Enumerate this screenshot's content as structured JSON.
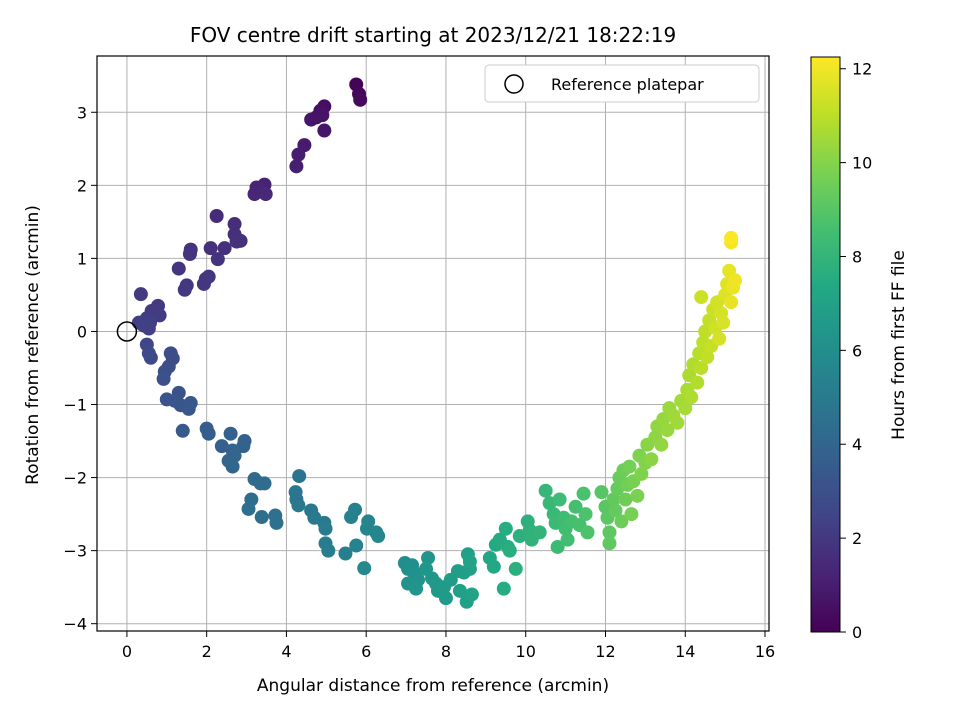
{
  "chart_data": {
    "type": "scatter",
    "title": "FOV centre drift starting at 2023/12/21 18:22:19",
    "xlabel": "Angular distance from reference (arcmin)",
    "ylabel": "Rotation from reference (arcmin)",
    "xlim": [
      -0.75,
      16.1
    ],
    "ylim": [
      -4.1,
      3.77
    ],
    "xticks": [
      0,
      2,
      4,
      6,
      8,
      10,
      12,
      14,
      16
    ],
    "yticks": [
      -4,
      -3,
      -2,
      -1,
      0,
      1,
      2,
      3
    ],
    "grid": true,
    "legend": {
      "placement": "top-right",
      "entries": [
        "Reference platepar"
      ]
    },
    "reference_point": {
      "x": 0,
      "y": 0,
      "label": "Reference platepar"
    },
    "colorbar": {
      "label": "Hours from first FF file",
      "range": [
        0,
        12.25
      ],
      "ticks": [
        0,
        2,
        4,
        6,
        8,
        10,
        12
      ],
      "colormap": "viridis"
    },
    "series": [
      {
        "color_by": "hours",
        "points": [
          [
            5.75,
            3.38,
            0.1
          ],
          [
            5.82,
            3.25,
            0.2
          ],
          [
            5.85,
            3.17,
            0.3
          ],
          [
            4.95,
            3.08,
            0.45
          ],
          [
            4.85,
            3.02,
            0.55
          ],
          [
            4.75,
            2.93,
            0.6
          ],
          [
            4.9,
            2.96,
            0.65
          ],
          [
            4.62,
            2.9,
            0.7
          ],
          [
            4.95,
            2.75,
            0.75
          ],
          [
            4.45,
            2.55,
            0.9
          ],
          [
            4.3,
            2.42,
            1.0
          ],
          [
            4.25,
            2.26,
            1.05
          ],
          [
            3.45,
            2.01,
            1.2
          ],
          [
            3.25,
            1.97,
            1.25
          ],
          [
            3.35,
            1.93,
            1.3
          ],
          [
            3.2,
            1.88,
            1.35
          ],
          [
            3.48,
            1.88,
            1.4
          ],
          [
            2.25,
            1.58,
            1.5
          ],
          [
            2.7,
            1.47,
            1.6
          ],
          [
            2.7,
            1.33,
            1.65
          ],
          [
            2.85,
            1.24,
            1.7
          ],
          [
            2.75,
            1.23,
            1.72
          ],
          [
            2.1,
            1.14,
            1.75
          ],
          [
            2.45,
            1.14,
            1.78
          ],
          [
            1.6,
            1.12,
            1.8
          ],
          [
            1.58,
            1.06,
            1.82
          ],
          [
            2.28,
            0.99,
            1.85
          ],
          [
            1.3,
            0.86,
            1.88
          ],
          [
            2.05,
            0.75,
            1.9
          ],
          [
            1.98,
            0.72,
            1.92
          ],
          [
            1.93,
            0.65,
            1.95
          ],
          [
            1.5,
            0.63,
            1.97
          ],
          [
            1.45,
            0.57,
            2.0
          ],
          [
            0.35,
            0.51,
            2.05
          ],
          [
            0.78,
            0.35,
            2.1
          ],
          [
            0.72,
            0.3,
            2.12
          ],
          [
            0.62,
            0.28,
            2.15
          ],
          [
            0.5,
            0.18,
            2.18
          ],
          [
            0.82,
            0.22,
            2.2
          ],
          [
            0.3,
            0.12,
            2.22
          ],
          [
            0.58,
            0.12,
            2.25
          ],
          [
            0.42,
            0.08,
            2.28
          ],
          [
            0.55,
            0.04,
            2.3
          ],
          [
            0.5,
            -0.18,
            2.6
          ],
          [
            0.55,
            -0.3,
            2.7
          ],
          [
            0.6,
            -0.36,
            2.75
          ],
          [
            1.1,
            -0.3,
            2.8
          ],
          [
            1.15,
            -0.37,
            2.85
          ],
          [
            1.05,
            -0.48,
            2.9
          ],
          [
            0.95,
            -0.55,
            2.95
          ],
          [
            0.92,
            -0.65,
            3.0
          ],
          [
            1.3,
            -0.84,
            3.1
          ],
          [
            1.0,
            -0.93,
            3.15
          ],
          [
            1.2,
            -0.95,
            3.2
          ],
          [
            1.35,
            -1.01,
            3.25
          ],
          [
            1.6,
            -0.98,
            3.3
          ],
          [
            1.55,
            -1.06,
            3.35
          ],
          [
            1.4,
            -1.36,
            3.4
          ],
          [
            2.0,
            -1.33,
            3.6
          ],
          [
            2.05,
            -1.4,
            3.65
          ],
          [
            2.38,
            -1.57,
            3.7
          ],
          [
            2.6,
            -1.4,
            3.75
          ],
          [
            2.95,
            -1.5,
            3.8
          ],
          [
            2.92,
            -1.57,
            3.85
          ],
          [
            2.65,
            -1.63,
            3.9
          ],
          [
            2.7,
            -1.7,
            3.95
          ],
          [
            2.55,
            -1.77,
            4.0
          ],
          [
            2.65,
            -1.85,
            4.05
          ],
          [
            3.2,
            -2.02,
            4.2
          ],
          [
            3.35,
            -2.08,
            4.25
          ],
          [
            3.45,
            -2.08,
            4.3
          ],
          [
            3.12,
            -2.3,
            4.35
          ],
          [
            3.05,
            -2.43,
            4.4
          ],
          [
            3.38,
            -2.54,
            4.45
          ],
          [
            3.72,
            -2.52,
            4.5
          ],
          [
            3.75,
            -2.62,
            4.55
          ],
          [
            4.32,
            -1.98,
            4.7
          ],
          [
            4.23,
            -2.2,
            4.75
          ],
          [
            4.25,
            -2.3,
            4.8
          ],
          [
            4.3,
            -2.38,
            4.85
          ],
          [
            4.62,
            -2.45,
            4.9
          ],
          [
            4.7,
            -2.55,
            4.95
          ],
          [
            4.95,
            -2.62,
            5.0
          ],
          [
            4.98,
            -2.7,
            5.05
          ],
          [
            4.98,
            -2.9,
            5.1
          ],
          [
            5.05,
            -3.0,
            5.15
          ],
          [
            5.48,
            -3.04,
            5.25
          ],
          [
            5.72,
            -2.44,
            5.3
          ],
          [
            5.62,
            -2.54,
            5.35
          ],
          [
            5.75,
            -2.93,
            5.4
          ],
          [
            6.05,
            -2.6,
            5.5
          ],
          [
            6.02,
            -2.7,
            5.55
          ],
          [
            6.25,
            -2.75,
            5.6
          ],
          [
            6.3,
            -2.8,
            5.65
          ],
          [
            5.95,
            -3.24,
            5.7
          ],
          [
            6.97,
            -3.17,
            6.0
          ],
          [
            7.05,
            -3.25,
            6.05
          ],
          [
            7.15,
            -3.2,
            6.1
          ],
          [
            7.2,
            -3.3,
            6.15
          ],
          [
            7.3,
            -3.4,
            6.2
          ],
          [
            7.05,
            -3.45,
            6.25
          ],
          [
            7.25,
            -3.52,
            6.3
          ],
          [
            7.55,
            -3.1,
            6.35
          ],
          [
            7.5,
            -3.25,
            6.4
          ],
          [
            7.65,
            -3.38,
            6.45
          ],
          [
            7.75,
            -3.45,
            6.5
          ],
          [
            7.8,
            -3.55,
            6.55
          ],
          [
            7.95,
            -3.5,
            6.6
          ],
          [
            8.0,
            -3.65,
            6.65
          ],
          [
            8.12,
            -3.4,
            6.7
          ],
          [
            8.3,
            -3.28,
            6.75
          ],
          [
            8.45,
            -3.3,
            6.8
          ],
          [
            8.35,
            -3.55,
            6.85
          ],
          [
            8.6,
            -3.25,
            6.9
          ],
          [
            8.52,
            -3.7,
            6.95
          ],
          [
            8.55,
            -3.05,
            7.0
          ],
          [
            8.6,
            -3.15,
            7.05
          ],
          [
            8.65,
            -3.6,
            7.1
          ],
          [
            9.1,
            -3.1,
            7.3
          ],
          [
            9.2,
            -3.22,
            7.35
          ],
          [
            9.25,
            -2.92,
            7.4
          ],
          [
            9.35,
            -2.85,
            7.45
          ],
          [
            9.45,
            -3.52,
            7.5
          ],
          [
            9.5,
            -2.7,
            7.55
          ],
          [
            9.55,
            -2.95,
            7.6
          ],
          [
            9.6,
            -3.0,
            7.65
          ],
          [
            9.75,
            -3.25,
            7.7
          ],
          [
            9.85,
            -2.8,
            7.75
          ],
          [
            10.05,
            -2.6,
            7.8
          ],
          [
            10.1,
            -2.72,
            7.85
          ],
          [
            10.15,
            -2.85,
            7.9
          ],
          [
            10.35,
            -2.75,
            7.95
          ],
          [
            10.5,
            -2.18,
            8.1
          ],
          [
            10.6,
            -2.35,
            8.15
          ],
          [
            10.7,
            -2.5,
            8.2
          ],
          [
            10.75,
            -2.62,
            8.25
          ],
          [
            10.8,
            -2.95,
            8.3
          ],
          [
            10.85,
            -2.3,
            8.35
          ],
          [
            10.95,
            -2.55,
            8.4
          ],
          [
            11.0,
            -2.7,
            8.45
          ],
          [
            11.05,
            -2.85,
            8.5
          ],
          [
            11.15,
            -2.6,
            8.55
          ],
          [
            11.25,
            -2.4,
            8.6
          ],
          [
            11.35,
            -2.65,
            8.65
          ],
          [
            11.45,
            -2.22,
            8.7
          ],
          [
            11.5,
            -2.5,
            8.75
          ],
          [
            11.55,
            -2.75,
            8.8
          ],
          [
            11.9,
            -2.2,
            9.0
          ],
          [
            12.0,
            -2.4,
            9.05
          ],
          [
            12.05,
            -2.55,
            9.1
          ],
          [
            12.1,
            -2.75,
            9.15
          ],
          [
            12.1,
            -2.9,
            9.2
          ],
          [
            12.2,
            -2.3,
            9.25
          ],
          [
            12.25,
            -2.45,
            9.3
          ],
          [
            12.3,
            -2.15,
            9.35
          ],
          [
            12.35,
            -2.0,
            9.4
          ],
          [
            12.4,
            -2.6,
            9.45
          ],
          [
            12.45,
            -1.9,
            9.5
          ],
          [
            12.5,
            -2.3,
            9.55
          ],
          [
            12.55,
            -2.1,
            9.6
          ],
          [
            12.6,
            -1.85,
            9.65
          ],
          [
            12.65,
            -2.5,
            9.7
          ],
          [
            12.7,
            -2.05,
            9.75
          ],
          [
            12.8,
            -2.25,
            9.8
          ],
          [
            12.85,
            -1.7,
            9.85
          ],
          [
            12.9,
            -1.95,
            9.9
          ],
          [
            13.0,
            -1.8,
            9.95
          ],
          [
            13.05,
            -1.55,
            10.05
          ],
          [
            13.15,
            -1.75,
            10.1
          ],
          [
            13.25,
            -1.45,
            10.15
          ],
          [
            13.3,
            -1.3,
            10.2
          ],
          [
            13.4,
            -1.55,
            10.25
          ],
          [
            13.45,
            -1.2,
            10.3
          ],
          [
            13.55,
            -1.35,
            10.35
          ],
          [
            13.6,
            -1.05,
            10.4
          ],
          [
            13.7,
            -1.15,
            10.45
          ],
          [
            13.8,
            -1.25,
            10.5
          ],
          [
            13.9,
            -0.95,
            10.55
          ],
          [
            14.0,
            -1.05,
            10.6
          ],
          [
            14.05,
            -0.8,
            10.65
          ],
          [
            14.1,
            -0.6,
            10.7
          ],
          [
            14.15,
            -0.9,
            10.75
          ],
          [
            14.2,
            -0.45,
            10.8
          ],
          [
            14.3,
            -0.7,
            10.85
          ],
          [
            14.35,
            -0.3,
            10.9
          ],
          [
            14.4,
            -0.5,
            10.95
          ],
          [
            14.45,
            -0.15,
            11.0
          ],
          [
            14.5,
            0.0,
            11.05
          ],
          [
            14.55,
            -0.35,
            11.1
          ],
          [
            14.6,
            0.15,
            11.15
          ],
          [
            14.65,
            -0.2,
            11.2
          ],
          [
            14.7,
            0.3,
            11.25
          ],
          [
            14.4,
            0.47,
            11.3
          ],
          [
            14.75,
            0.05,
            11.35
          ],
          [
            14.8,
            0.4,
            11.4
          ],
          [
            14.85,
            -0.1,
            11.45
          ],
          [
            14.9,
            0.25,
            11.5
          ],
          [
            14.95,
            0.12,
            11.55
          ],
          [
            15.0,
            0.5,
            11.6
          ],
          [
            15.05,
            0.65,
            11.7
          ],
          [
            15.1,
            0.83,
            11.8
          ],
          [
            15.15,
            0.4,
            11.85
          ],
          [
            15.2,
            0.6,
            11.9
          ],
          [
            15.25,
            0.7,
            11.95
          ],
          [
            15.15,
            1.22,
            12.1
          ],
          [
            15.15,
            1.28,
            12.2
          ]
        ]
      }
    ]
  }
}
